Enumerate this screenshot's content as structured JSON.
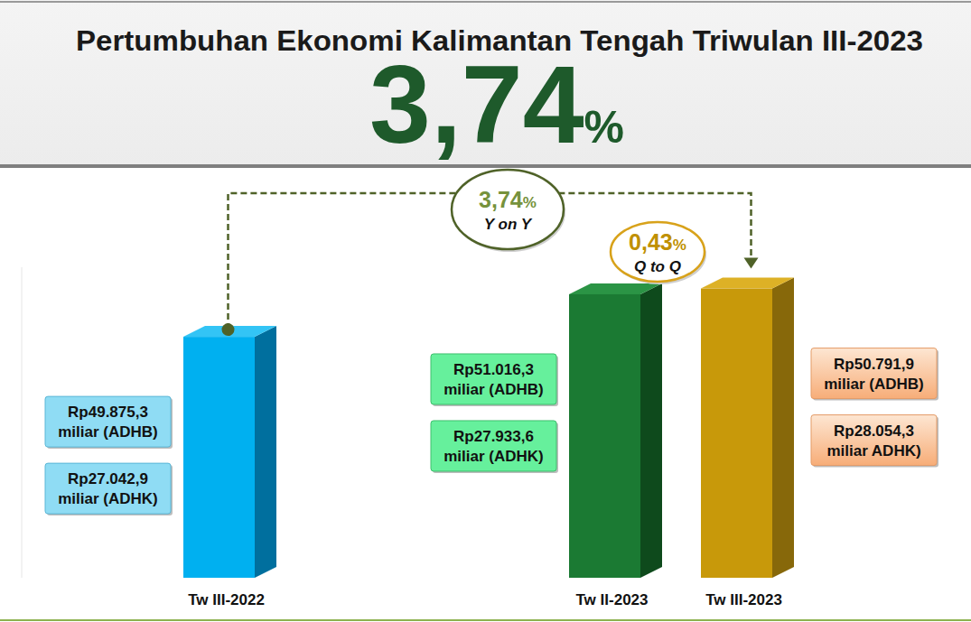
{
  "chart_data": {
    "type": "bar",
    "title": "Pertumbuhan Ekonomi Kalimantan Tengah Triwulan III-2023",
    "headline": {
      "value": 3.74,
      "label": "3,74%"
    },
    "categories": [
      "Tw III-2022",
      "Tw II-2023",
      "Tw III-2023"
    ],
    "values": [
      27042.9,
      27933.6,
      28054.3
    ],
    "value_labels": [
      "Rp27.042,9\nmiliar (ADHK)",
      "Rp27.933,6\nmiliar (ADHK)",
      "Rp28.054,3\nmiliar ADHK)"
    ],
    "adhb_values": [
      49875.3,
      51016.3,
      50791.9
    ],
    "adhb_value_labels": [
      "Rp49.875,3\nmiliar (ADHB)",
      "Rp51.016,3\nmiliar (ADHB)",
      "Rp50.791,9\nmiliar (ADHB)"
    ],
    "colors": [
      "#00b0f0",
      "#1b7a33",
      "#c8990a"
    ],
    "ylim": [
      22000,
      28500
    ],
    "yticks": [],
    "tick_labels": "x",
    "data_labels": true,
    "annotations": [
      {
        "value": 3.74,
        "label": "3,74%",
        "text": "Y on Y"
      },
      {
        "value": 0.43,
        "label": "0,43%",
        "text": "Q to Q"
      }
    ]
  }
}
